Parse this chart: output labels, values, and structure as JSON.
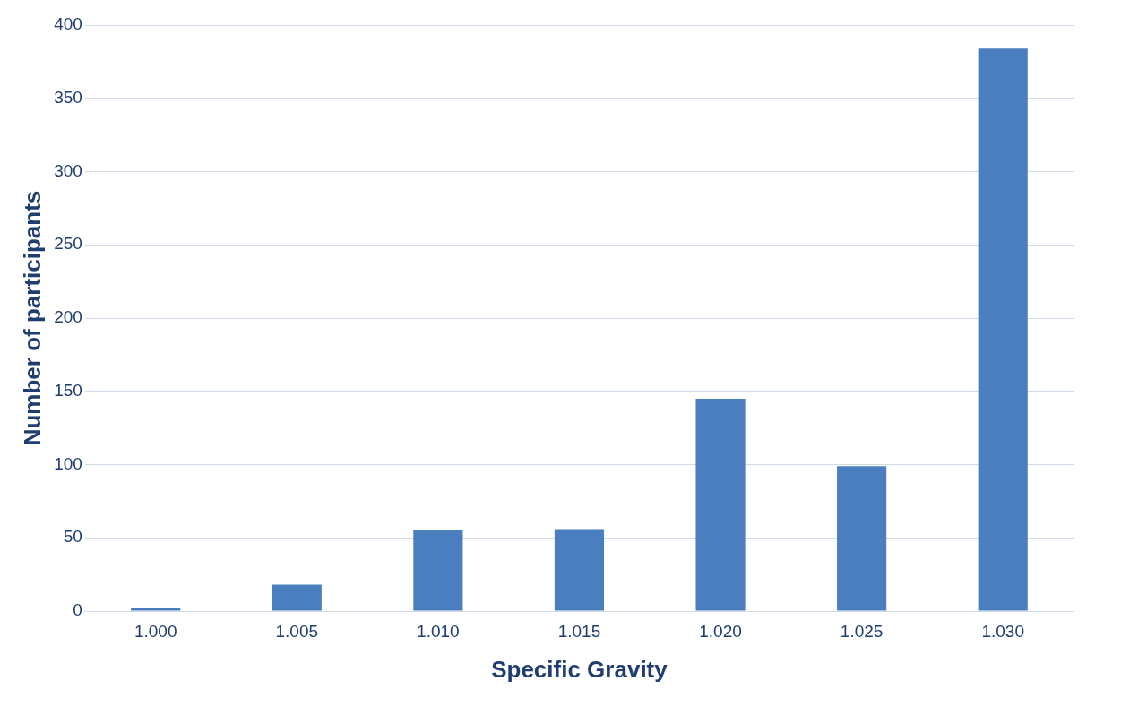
{
  "chart_data": {
    "type": "bar",
    "xlabel": "Specific Gravity",
    "ylabel": "Number of participants",
    "categories": [
      "1.000",
      "1.005",
      "1.010",
      "1.015",
      "1.020",
      "1.025",
      "1.030"
    ],
    "values": [
      2,
      18,
      55,
      56,
      145,
      99,
      384
    ],
    "color": "#4a7ebf",
    "ylim": [
      0,
      400
    ],
    "yticks": [
      0,
      50,
      100,
      150,
      200,
      250,
      300,
      350,
      400
    ],
    "grid": "y",
    "legend": false
  }
}
